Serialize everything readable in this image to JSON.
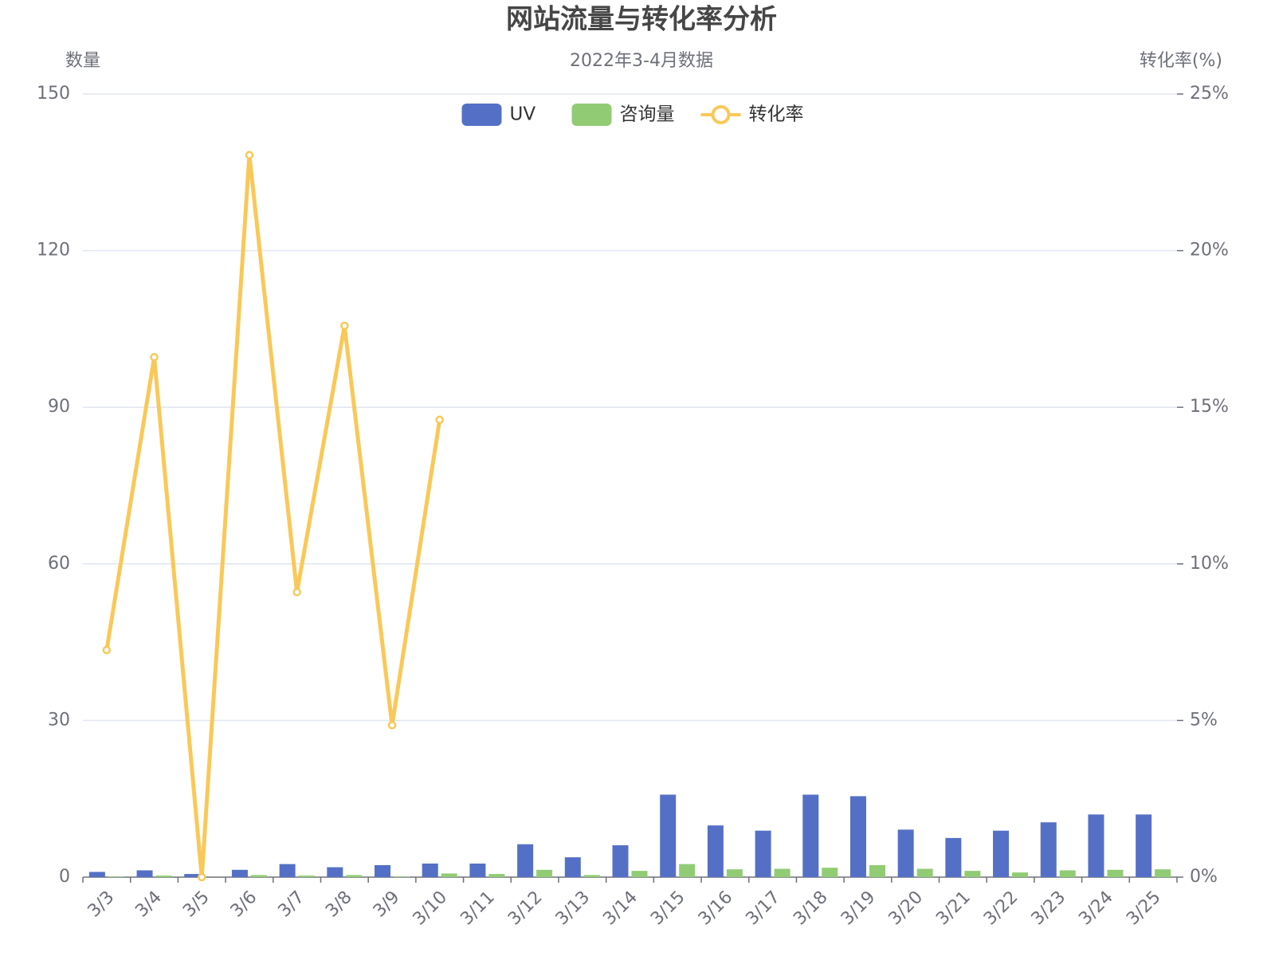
{
  "chart_data": {
    "type": "bar-line",
    "title": "网站流量与转化率分析",
    "subtitle": "2022年3-4月数据",
    "y_label": "数量",
    "y2_label": "转化率(%)",
    "categories": [
      "3/3",
      "3/4",
      "3/5",
      "3/6",
      "3/7",
      "3/8",
      "3/9",
      "3/10",
      "3/11",
      "3/12",
      "3/13",
      "3/14",
      "3/15",
      "3/16",
      "3/17",
      "3/18",
      "3/19",
      "3/20",
      "3/21",
      "3/22",
      "3/23",
      "3/24",
      "3/25"
    ],
    "series": [
      {
        "name": "UV",
        "type": "bar",
        "color": "#5470c6",
        "values": [
          1,
          1.3,
          0.6,
          1.4,
          2.5,
          1.9,
          2.3,
          2.6,
          2.6,
          6.3,
          3.8,
          6.1,
          15.8,
          9.9,
          8.9,
          15.8,
          15.5,
          9.1,
          7.5,
          8.9,
          10.5,
          12,
          12
        ]
      },
      {
        "name": "咨询量",
        "type": "bar",
        "color": "#91cc75",
        "values": [
          0.1,
          0.3,
          0,
          0.4,
          0.3,
          0.4,
          0.1,
          0.7,
          0.6,
          1.4,
          0.4,
          1.2,
          2.5,
          1.5,
          1.6,
          1.8,
          2.3,
          1.6,
          1.2,
          0.9,
          1.3,
          1.4,
          1.5
        ]
      },
      {
        "name": "转化率",
        "type": "line",
        "axis": "y2",
        "color": "#fac858",
        "values": [
          7.25,
          16.6,
          0,
          23.05,
          9.1,
          17.6,
          4.85,
          14.6,
          null,
          null,
          null,
          null,
          null,
          null,
          null,
          null,
          null,
          null,
          null,
          null,
          null,
          null,
          null
        ]
      }
    ],
    "ylim": [
      0,
      150
    ],
    "yticks": [
      0,
      30,
      60,
      90,
      120,
      150
    ],
    "y2lim": [
      0,
      25
    ],
    "y2ticks": [
      {
        "value": 0,
        "label": "0%"
      },
      {
        "value": 5,
        "label": "5%"
      },
      {
        "value": 10,
        "label": "10%"
      },
      {
        "value": 15,
        "label": "15%"
      },
      {
        "value": 20,
        "label": "20%"
      },
      {
        "value": 25,
        "label": "25%"
      }
    ],
    "grid": true,
    "legend": "top"
  }
}
